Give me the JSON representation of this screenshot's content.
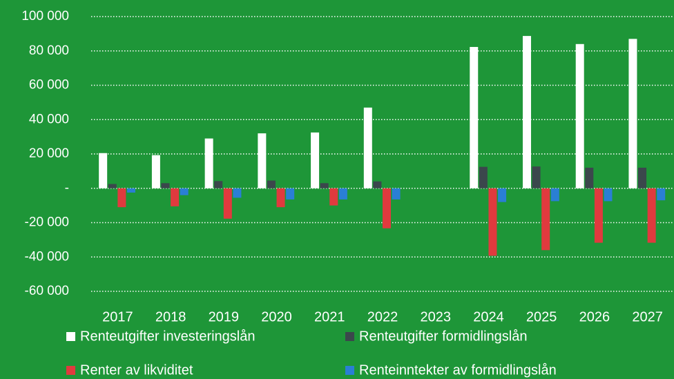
{
  "chart_data": {
    "type": "bar",
    "categories": [
      "2017",
      "2018",
      "2019",
      "2020",
      "2021",
      "2022",
      "2023",
      "2024",
      "2025",
      "2026",
      "2027"
    ],
    "series": [
      {
        "name": "Renteutgifter investeringslån",
        "color": "#ffffff",
        "values": [
          20500,
          19300,
          29000,
          32000,
          32500,
          47000,
          null,
          82300,
          88700,
          84000,
          87000
        ]
      },
      {
        "name": "Renteutgifter formidlingslån",
        "color": "#3b474c",
        "values": [
          2500,
          3000,
          4200,
          4500,
          3000,
          4000,
          null,
          12500,
          12700,
          12000,
          12000
        ]
      },
      {
        "name": "Renter av likviditet",
        "color": "#e03a3e",
        "values": [
          -11000,
          -10500,
          -17700,
          -11000,
          -10000,
          -23300,
          null,
          -39300,
          -36000,
          -31700,
          -31700
        ]
      },
      {
        "name": "Renteinntekter av formidlingslån",
        "color": "#2a7fd4",
        "values": [
          -2500,
          -4000,
          -5500,
          -6500,
          -6500,
          -6500,
          null,
          -8000,
          -7500,
          -7500,
          -7000
        ]
      }
    ],
    "ylim": [
      -60000,
      100000
    ],
    "yticks": [
      {
        "value": -60000,
        "label": "-60 000"
      },
      {
        "value": -40000,
        "label": "-40 000"
      },
      {
        "value": -20000,
        "label": "-20 000"
      },
      {
        "value": 0,
        "label": "-"
      },
      {
        "value": 20000,
        "label": "20 000"
      },
      {
        "value": 40000,
        "label": "40 000"
      },
      {
        "value": 60000,
        "label": "60 000"
      },
      {
        "value": 80000,
        "label": "80 000"
      },
      {
        "value": 100000,
        "label": "100 000"
      }
    ],
    "grid": true
  }
}
